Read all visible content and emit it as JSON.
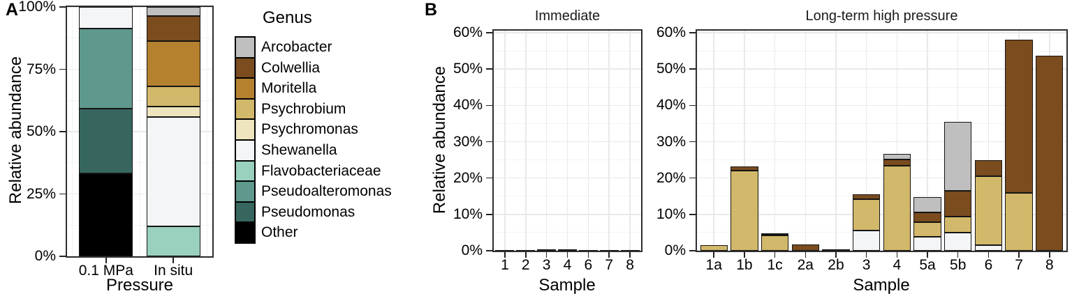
{
  "panels": {
    "a_label": "A",
    "b_label": "B"
  },
  "axes": {
    "y_title": "Relative abundance",
    "a_x_title": "Pressure",
    "b_x_title": "Sample"
  },
  "legend": {
    "title": "Genus",
    "entries": [
      {
        "label": "Arcobacter",
        "color": "#bfbfbf"
      },
      {
        "label": "Colwellia",
        "color": "#7a4c1e"
      },
      {
        "label": "Moritella",
        "color": "#b5812f"
      },
      {
        "label": "Psychrobium",
        "color": "#d2b86a"
      },
      {
        "label": "Psychromonas",
        "color": "#eee4be"
      },
      {
        "label": "Shewanella",
        "color": "#f3f5f6"
      },
      {
        "label": "Flavobacteriaceae",
        "color": "#9ad0be"
      },
      {
        "label": "Pseudoalteromonas",
        "color": "#5f988c"
      },
      {
        "label": "Pseudomonas",
        "color": "#37665f"
      },
      {
        "label": "Other",
        "color": "#000000"
      }
    ]
  },
  "chart_data": [
    {
      "type": "bar",
      "stacked": true,
      "panel": "A",
      "title": "",
      "xlabel": "Pressure",
      "ylabel": "Relative abundance",
      "ylim": [
        0,
        100
      ],
      "yticks": [
        0,
        25,
        50,
        75,
        100
      ],
      "ytick_labels": [
        "0%",
        "25%",
        "50%",
        "75%",
        "100%"
      ],
      "categories": [
        "0.1 MPa",
        "In situ"
      ],
      "series": [
        {
          "name": "Other",
          "values": [
            33.2,
            0
          ]
        },
        {
          "name": "Pseudomonas",
          "values": [
            25.9,
            0
          ]
        },
        {
          "name": "Pseudoalteromonas",
          "values": [
            32.2,
            0
          ]
        },
        {
          "name": "Flavobacteriaceae",
          "values": [
            0,
            11.9
          ]
        },
        {
          "name": "Shewanella",
          "values": [
            8.7,
            44.0
          ]
        },
        {
          "name": "Psychromonas",
          "values": [
            0,
            4.2
          ]
        },
        {
          "name": "Psychrobium",
          "values": [
            0,
            8.0
          ]
        },
        {
          "name": "Moritella",
          "values": [
            0,
            18.2
          ]
        },
        {
          "name": "Colwellia",
          "values": [
            0,
            10.2
          ]
        },
        {
          "name": "Arcobacter",
          "values": [
            0,
            3.5
          ]
        }
      ]
    },
    {
      "type": "bar",
      "stacked": true,
      "panel": "B",
      "title": "Immediate",
      "xlabel": "Sample",
      "ylabel": "Relative abundance",
      "ylim": [
        0,
        60
      ],
      "yticks": [
        0,
        10,
        20,
        30,
        40,
        50,
        60
      ],
      "ytick_labels": [
        "0%",
        "10%",
        "20%",
        "30%",
        "40%",
        "50%",
        "60%"
      ],
      "categories": [
        "1",
        "2",
        "3",
        "4",
        "6",
        "7",
        "8"
      ],
      "series": [
        {
          "name": "Colwellia",
          "values": [
            0.1,
            0.1,
            0.4,
            0.4,
            0.1,
            0.1,
            0.1
          ]
        }
      ]
    },
    {
      "type": "bar",
      "stacked": true,
      "panel": "B",
      "title": "Long-term high pressure",
      "xlabel": "Sample",
      "ylabel": "Relative abundance",
      "ylim": [
        0,
        60
      ],
      "yticks": [
        0,
        10,
        20,
        30,
        40,
        50,
        60
      ],
      "ytick_labels": [
        "0%",
        "10%",
        "20%",
        "30%",
        "40%",
        "50%",
        "60%"
      ],
      "categories": [
        "1a",
        "1b",
        "1c",
        "2a",
        "2b",
        "3",
        "4",
        "5a",
        "5b",
        "6",
        "7",
        "8"
      ],
      "series": [
        {
          "name": "Shewanella",
          "values": [
            0,
            0,
            0,
            0,
            0,
            5.5,
            0,
            3.8,
            5.0,
            1.5,
            0,
            0
          ]
        },
        {
          "name": "Psychrobium",
          "values": [
            1.6,
            22.0,
            4.3,
            0,
            0,
            8.6,
            23.4,
            4.0,
            4.3,
            19.0,
            16.0,
            0
          ]
        },
        {
          "name": "Colwellia",
          "values": [
            0,
            1.2,
            0.5,
            1.8,
            0.35,
            1.5,
            1.7,
            2.7,
            7.2,
            4.4,
            42.0,
            53.7
          ]
        },
        {
          "name": "Arcobacter",
          "values": [
            0,
            0,
            0,
            0,
            0,
            0,
            1.6,
            4.3,
            19.0,
            0,
            0,
            0
          ]
        }
      ]
    }
  ]
}
